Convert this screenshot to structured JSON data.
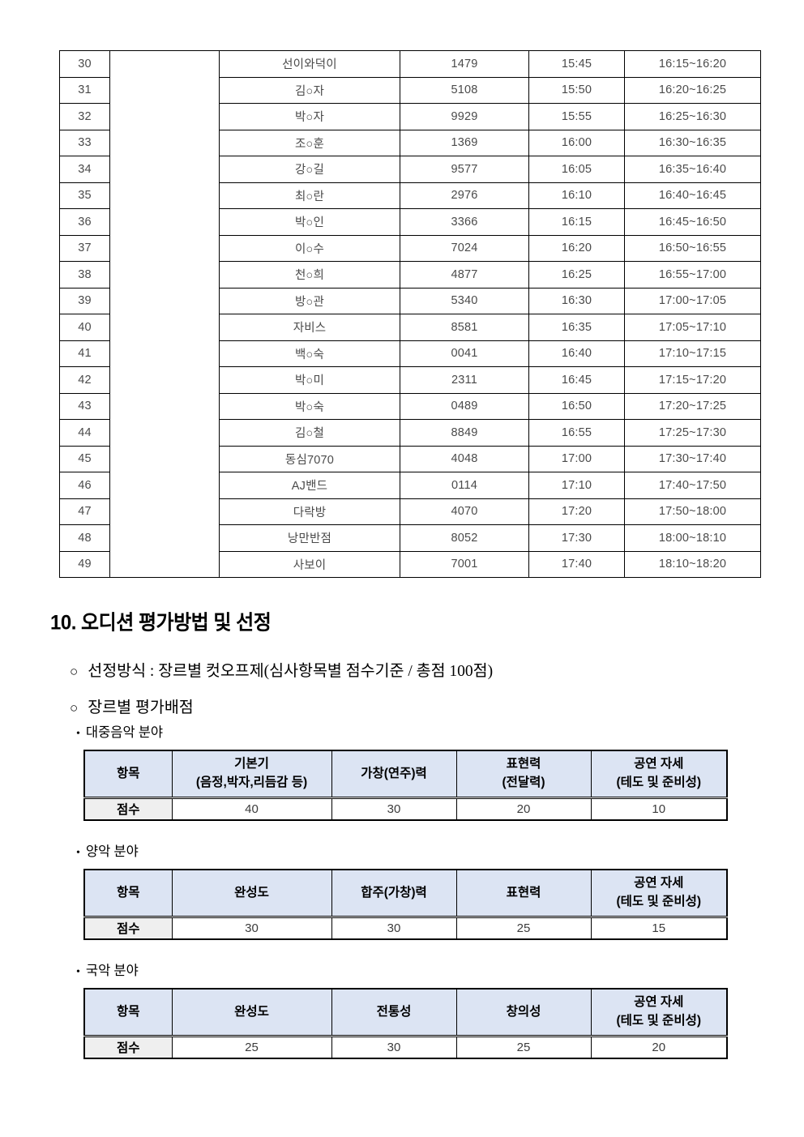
{
  "colors": {
    "score_header_bg": "#dce4f3",
    "score_rowlabel_bg": "#efefef",
    "table_border": "#000000",
    "schedule_text": "#4a4a4a"
  },
  "schedule_table": {
    "rows": [
      {
        "no": "30",
        "name": "선이와덕이",
        "number": "1479",
        "time": "15:45",
        "slot": "16:15~16:20"
      },
      {
        "no": "31",
        "name": "김○자",
        "number": "5108",
        "time": "15:50",
        "slot": "16:20~16:25"
      },
      {
        "no": "32",
        "name": "박○자",
        "number": "9929",
        "time": "15:55",
        "slot": "16:25~16:30"
      },
      {
        "no": "33",
        "name": "조○훈",
        "number": "1369",
        "time": "16:00",
        "slot": "16:30~16:35"
      },
      {
        "no": "34",
        "name": "강○길",
        "number": "9577",
        "time": "16:05",
        "slot": "16:35~16:40"
      },
      {
        "no": "35",
        "name": "최○란",
        "number": "2976",
        "time": "16:10",
        "slot": "16:40~16:45"
      },
      {
        "no": "36",
        "name": "박○인",
        "number": "3366",
        "time": "16:15",
        "slot": "16:45~16:50"
      },
      {
        "no": "37",
        "name": "이○수",
        "number": "7024",
        "time": "16:20",
        "slot": "16:50~16:55"
      },
      {
        "no": "38",
        "name": "천○희",
        "number": "4877",
        "time": "16:25",
        "slot": "16:55~17:00"
      },
      {
        "no": "39",
        "name": "방○관",
        "number": "5340",
        "time": "16:30",
        "slot": "17:00~17:05"
      },
      {
        "no": "40",
        "name": "자비스",
        "number": "8581",
        "time": "16:35",
        "slot": "17:05~17:10"
      },
      {
        "no": "41",
        "name": "백○숙",
        "number": "0041",
        "time": "16:40",
        "slot": "17:10~17:15"
      },
      {
        "no": "42",
        "name": "박○미",
        "number": "2311",
        "time": "16:45",
        "slot": "17:15~17:20"
      },
      {
        "no": "43",
        "name": "박○숙",
        "number": "0489",
        "time": "16:50",
        "slot": "17:20~17:25"
      },
      {
        "no": "44",
        "name": "김○철",
        "number": "8849",
        "time": "16:55",
        "slot": "17:25~17:30"
      },
      {
        "no": "45",
        "name": "동심7070",
        "number": "4048",
        "time": "17:00",
        "slot": "17:30~17:40"
      },
      {
        "no": "46",
        "name": "AJ밴드",
        "number": "0114",
        "time": "17:10",
        "slot": "17:40~17:50"
      },
      {
        "no": "47",
        "name": "다락방",
        "number": "4070",
        "time": "17:20",
        "slot": "17:50~18:00"
      },
      {
        "no": "48",
        "name": "낭만반점",
        "number": "8052",
        "time": "17:30",
        "slot": "18:00~18:10"
      },
      {
        "no": "49",
        "name": "사보이",
        "number": "7001",
        "time": "17:40",
        "slot": "18:10~18:20"
      }
    ]
  },
  "heading": "10. 오디션 평가방법 및 선정",
  "bullets": [
    {
      "marker": "○",
      "text": "선정방식 : 장르별 컷오프제(심사항목별 점수기준 / 총점 100점)"
    },
    {
      "marker": "○",
      "text": "장르별 평가배점"
    }
  ],
  "score_sections": [
    {
      "dot": "•",
      "label": "대중음악 분야",
      "corner": "항목",
      "row_label": "점수",
      "columns": [
        {
          "title": "기본기",
          "subtitle": "(음정,박자,리듬감 등)"
        },
        {
          "title": "가창(연주)력",
          "subtitle": ""
        },
        {
          "title": "표현력",
          "subtitle": "(전달력)"
        },
        {
          "title": "공연 자세",
          "subtitle": "(테도 및 준비성)"
        }
      ],
      "scores": [
        "40",
        "30",
        "20",
        "10"
      ]
    },
    {
      "dot": "•",
      "label": "양악 분야",
      "corner": "항목",
      "row_label": "점수",
      "columns": [
        {
          "title": "완성도",
          "subtitle": ""
        },
        {
          "title": "합주(가창)력",
          "subtitle": ""
        },
        {
          "title": "표현력",
          "subtitle": ""
        },
        {
          "title": "공연 자세",
          "subtitle": "(테도 및 준비성)"
        }
      ],
      "scores": [
        "30",
        "30",
        "25",
        "15"
      ]
    },
    {
      "dot": "•",
      "label": "국악 분야",
      "corner": "항목",
      "row_label": "점수",
      "columns": [
        {
          "title": "완성도",
          "subtitle": ""
        },
        {
          "title": "전통성",
          "subtitle": ""
        },
        {
          "title": "창의성",
          "subtitle": ""
        },
        {
          "title": "공연 자세",
          "subtitle": "(테도 및 준비성)"
        }
      ],
      "scores": [
        "25",
        "30",
        "25",
        "20"
      ]
    }
  ]
}
